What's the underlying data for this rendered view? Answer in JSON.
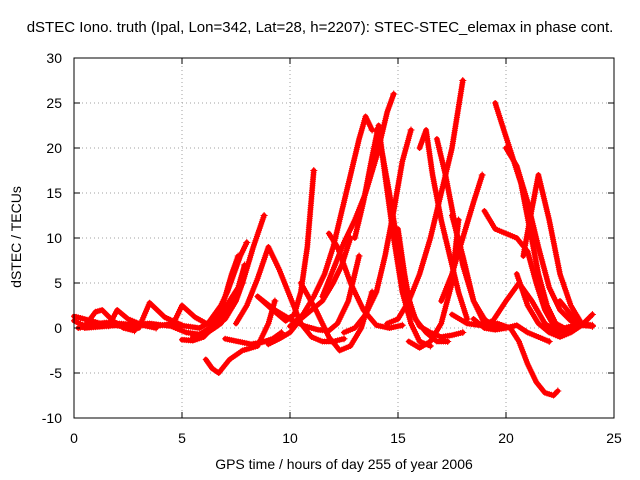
{
  "chart_data": {
    "type": "scatter",
    "title": "dSTEC Iono. truth (Ipal, Lon=342, Lat=28, h=2207): STEC-STEC_elemax in phase cont.",
    "xlabel": "GPS time / hours of day 255 of year 2006",
    "ylabel": "dSTEC  / TECUs",
    "xlim": [
      0,
      25
    ],
    "ylim": [
      -10,
      30
    ],
    "xticks": [
      0,
      5,
      10,
      15,
      20,
      25
    ],
    "yticks": [
      -10,
      -5,
      0,
      5,
      10,
      15,
      20,
      25,
      30
    ],
    "grid": true,
    "marker": "+",
    "color": "#ff0000",
    "series": [
      {
        "x": [
          0.0,
          0.5,
          1.0,
          1.3,
          1.8,
          2.3,
          2.8
        ],
        "y": [
          0.8,
          0.2,
          1.8,
          2.0,
          0.8,
          0.0,
          -0.3
        ]
      },
      {
        "x": [
          0.0,
          0.8,
          1.6,
          2.0,
          2.5,
          3.2,
          3.8
        ],
        "y": [
          1.3,
          0.8,
          0.2,
          2.0,
          1.0,
          0.3,
          0.0
        ]
      },
      {
        "x": [
          0.2,
          1.2,
          2.2,
          3.0,
          3.5,
          4.2,
          5.0
        ],
        "y": [
          0.0,
          0.5,
          0.2,
          0.0,
          2.8,
          1.2,
          0.3
        ]
      },
      {
        "x": [
          0.3,
          1.5,
          2.6,
          3.8,
          4.6,
          5.0,
          5.6,
          6.2
        ],
        "y": [
          0.3,
          0.6,
          0.4,
          0.2,
          0.5,
          2.5,
          1.2,
          0.4
        ]
      },
      {
        "x": [
          0.5,
          2.0,
          3.5,
          4.5,
          5.2,
          5.8,
          6.3,
          6.7,
          7.0,
          7.3,
          7.6
        ],
        "y": [
          0.0,
          0.3,
          0.5,
          0.2,
          -0.5,
          -0.7,
          0.0,
          1.5,
          3.5,
          6.0,
          8.0
        ]
      },
      {
        "x": [
          4.5,
          5.2,
          5.8,
          6.2,
          6.5,
          6.8,
          7.1,
          7.4,
          7.7,
          8.0
        ],
        "y": [
          0.4,
          0.2,
          0.0,
          0.5,
          1.5,
          2.5,
          4.0,
          6.0,
          8.0,
          9.5
        ]
      },
      {
        "x": [
          5.0,
          5.5,
          6.0,
          6.4,
          6.8,
          7.2,
          7.6,
          7.9
        ],
        "y": [
          -1.3,
          -1.4,
          -1.0,
          0.0,
          1.5,
          3.0,
          4.5,
          7.0
        ]
      },
      {
        "x": [
          5.5,
          6.2,
          6.8,
          7.3,
          7.8,
          8.3,
          8.8
        ],
        "y": [
          -1.0,
          -0.5,
          0.5,
          2.5,
          5.0,
          9.0,
          12.5
        ]
      },
      {
        "x": [
          5.8,
          6.5,
          7.0,
          7.5,
          7.8
        ],
        "y": [
          -0.8,
          0.0,
          1.0,
          3.0,
          5.0
        ]
      },
      {
        "x": [
          6.1,
          6.4,
          6.7,
          7.2,
          7.8,
          8.5,
          9.0,
          9.3
        ],
        "y": [
          -3.5,
          -4.5,
          -5.0,
          -3.5,
          -2.5,
          -2.0,
          0.5,
          3.0
        ]
      },
      {
        "x": [
          7.0,
          7.6,
          8.2,
          8.7,
          9.2,
          9.6
        ],
        "y": [
          -1.2,
          -1.5,
          -1.8,
          -1.6,
          -1.2,
          -0.5
        ]
      },
      {
        "x": [
          7.5,
          8.0,
          8.5,
          9.0,
          9.5,
          10.0,
          10.5,
          11.0,
          11.5,
          12.0,
          12.5
        ],
        "y": [
          0.5,
          2.5,
          5.5,
          9.0,
          6.5,
          3.5,
          0.5,
          -1.0,
          -1.5,
          -1.5,
          -1.2
        ]
      },
      {
        "x": [
          9.0,
          9.5,
          10.0,
          10.5,
          11.0,
          11.5,
          12.0,
          12.4,
          12.8
        ],
        "y": [
          -1.8,
          -1.2,
          -0.5,
          1.0,
          2.0,
          3.0,
          5.0,
          7.0,
          10.0
        ]
      },
      {
        "x": [
          8.5,
          9.2,
          9.8,
          10.2,
          10.5,
          10.8,
          11.1
        ],
        "y": [
          3.5,
          2.0,
          0.8,
          1.5,
          4.0,
          9.0,
          17.5
        ]
      },
      {
        "x": [
          8.5,
          9.3,
          10.0,
          10.7,
          11.3,
          11.8,
          12.2,
          12.7,
          13.2
        ],
        "y": [
          3.5,
          2.0,
          1.0,
          0.2,
          -0.2,
          -0.3,
          0.5,
          3.0,
          8.0
        ]
      },
      {
        "x": [
          10.0,
          10.6,
          11.1,
          11.6,
          12.0,
          12.4,
          12.8,
          13.2,
          13.5,
          13.8
        ],
        "y": [
          0.2,
          1.5,
          3.5,
          6.0,
          9.0,
          13.0,
          17.0,
          21.0,
          23.5,
          22.0
        ]
      },
      {
        "x": [
          10.5,
          11.2,
          11.8,
          12.3,
          12.8,
          13.3,
          13.8
        ],
        "y": [
          5.0,
          2.0,
          -1.0,
          -2.5,
          -2.0,
          0.0,
          4.0
        ]
      },
      {
        "x": [
          11.5,
          12.0,
          12.5,
          13.0,
          13.5,
          14.0,
          14.5,
          14.8
        ],
        "y": [
          3.5,
          6.5,
          9.5,
          12.0,
          15.0,
          19.0,
          24.0,
          26.0
        ]
      },
      {
        "x": [
          11.8,
          12.2,
          12.8,
          13.4,
          14.0,
          14.6,
          15.2
        ],
        "y": [
          10.5,
          9.0,
          5.0,
          2.0,
          0.3,
          0.0,
          0.3
        ]
      },
      {
        "x": [
          12.5,
          13.0,
          13.5,
          14.0,
          14.4,
          14.8,
          15.2,
          15.6
        ],
        "y": [
          -0.5,
          0.0,
          1.5,
          4.0,
          8.0,
          13.0,
          18.5,
          22.0
        ]
      },
      {
        "x": [
          13.0,
          13.4,
          13.8,
          14.1,
          14.4,
          14.8,
          15.2,
          15.6,
          16.0,
          16.5
        ],
        "y": [
          10.0,
          14.0,
          19.0,
          22.5,
          17.0,
          10.0,
          4.0,
          0.5,
          -1.5,
          -2.0
        ]
      },
      {
        "x": [
          14.0,
          14.3,
          14.6,
          15.0,
          15.4,
          15.8,
          16.3,
          16.8,
          17.3
        ],
        "y": [
          22.0,
          19.0,
          15.0,
          9.0,
          4.0,
          1.0,
          -0.5,
          -1.5,
          -1.5
        ]
      },
      {
        "x": [
          14.5,
          15.0,
          15.5,
          16.0,
          16.5,
          17.0,
          17.5,
          18.0
        ],
        "y": [
          0.5,
          1.0,
          3.0,
          6.0,
          10.0,
          15.0,
          20.0,
          27.5
        ]
      },
      {
        "x": [
          15.0,
          15.3,
          15.6,
          16.0,
          16.5,
          17.0,
          17.5,
          18.0
        ],
        "y": [
          11.0,
          6.0,
          2.0,
          0.2,
          -0.5,
          -1.0,
          -0.8,
          -0.5
        ]
      },
      {
        "x": [
          15.5,
          16.0,
          16.5,
          17.0,
          17.5,
          17.8
        ],
        "y": [
          -1.5,
          -2.2,
          -1.5,
          0.5,
          5.0,
          12.0
        ]
      },
      {
        "x": [
          16.0,
          16.3,
          16.6,
          17.0,
          17.4,
          17.8,
          18.2
        ],
        "y": [
          20.0,
          22.0,
          17.0,
          12.0,
          8.0,
          4.0,
          1.0
        ]
      },
      {
        "x": [
          16.8,
          17.2,
          17.6,
          18.0,
          18.5,
          19.0,
          19.5
        ],
        "y": [
          21.0,
          17.0,
          12.0,
          7.0,
          3.0,
          1.0,
          0.0
        ]
      },
      {
        "x": [
          17.5,
          18.0,
          18.5,
          19.0,
          19.5,
          20.0
        ],
        "y": [
          12.5,
          8.0,
          3.0,
          0.5,
          0.0,
          0.0
        ]
      },
      {
        "x": [
          17.0,
          17.5,
          18.0,
          18.5,
          18.9
        ],
        "y": [
          3.0,
          6.0,
          10.0,
          14.0,
          17.0
        ]
      },
      {
        "x": [
          18.5,
          19.0,
          19.5,
          20.0,
          20.5,
          21.0,
          21.5,
          22.0
        ],
        "y": [
          1.0,
          0.0,
          -0.2,
          0.0,
          0.3,
          -0.5,
          -1.0,
          -1.5
        ]
      },
      {
        "x": [
          17.5,
          18.2,
          18.8,
          19.4,
          20.0,
          20.6,
          21.2,
          21.8,
          22.4,
          23.0,
          23.5
        ],
        "y": [
          1.5,
          0.5,
          0.3,
          0.8,
          3.0,
          5.0,
          3.0,
          0.5,
          -0.5,
          0.0,
          0.5
        ]
      },
      {
        "x": [
          19.0,
          19.5,
          20.0,
          20.5,
          21.0,
          21.4,
          21.8,
          22.2,
          22.5
        ],
        "y": [
          13.0,
          11.0,
          10.5,
          10.0,
          8.5,
          5.0,
          2.0,
          0.3,
          0.0
        ]
      },
      {
        "x": [
          19.5,
          19.9,
          20.3,
          20.7,
          21.1,
          21.5,
          21.9,
          22.3,
          22.7,
          23.2
        ],
        "y": [
          25.0,
          22.0,
          19.0,
          16.0,
          11.0,
          6.0,
          2.5,
          0.5,
          0.0,
          0.3
        ]
      },
      {
        "x": [
          20.0,
          20.5,
          21.0,
          21.5,
          22.0,
          22.5,
          23.0,
          23.5,
          24.0
        ],
        "y": [
          20.0,
          18.0,
          14.0,
          9.0,
          4.5,
          2.0,
          0.8,
          0.3,
          0.2
        ]
      },
      {
        "x": [
          20.5,
          21.0,
          21.5,
          22.0,
          22.5,
          23.0,
          23.5,
          24.0
        ],
        "y": [
          6.0,
          2.5,
          0.5,
          -0.5,
          -1.0,
          -0.5,
          0.3,
          1.5
        ]
      },
      {
        "x": [
          20.8,
          21.1,
          21.5,
          22.0,
          22.5,
          23.0,
          23.5,
          24.0
        ],
        "y": [
          8.0,
          12.0,
          17.0,
          12.0,
          6.0,
          2.5,
          0.5,
          0.2
        ]
      },
      {
        "x": [
          22.5,
          23.0,
          23.5,
          24.0
        ],
        "y": [
          3.0,
          1.5,
          0.5,
          0.3
        ]
      },
      {
        "x": [
          19.0,
          19.6,
          20.2,
          20.6,
          21.0,
          21.4,
          21.8,
          22.2,
          22.4
        ],
        "y": [
          0.2,
          0.5,
          0.0,
          -1.5,
          -4.0,
          -6.0,
          -7.2,
          -7.5,
          -7.0
        ]
      }
    ]
  }
}
